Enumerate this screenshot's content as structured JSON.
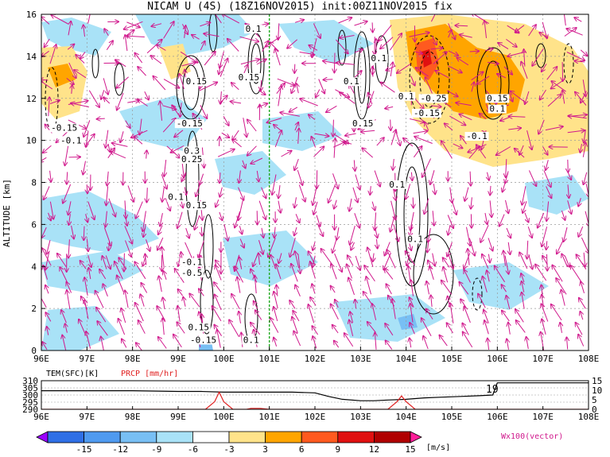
{
  "chart_data": [
    {
      "type": "heatmap",
      "title": "NICAM U (4S) (18Z16NOV2015) init:00Z11NOV2015 fix",
      "xlabel": "",
      "ylabel": "ALTITUDE [km]",
      "x_ticks": [
        "96E",
        "97E",
        "98E",
        "99E",
        "100E",
        "101E",
        "102E",
        "103E",
        "104E",
        "105E",
        "106E",
        "107E",
        "108E"
      ],
      "y_ticks": [
        "0",
        "2",
        "4",
        "6",
        "8",
        "10",
        "12",
        "14",
        "16"
      ],
      "xlim": [
        96,
        108
      ],
      "ylim": [
        0,
        16
      ],
      "grid": true,
      "colorbar": {
        "levels": [
          "-15",
          "-12",
          "-9",
          "-6",
          "-3",
          "3",
          "6",
          "9",
          "12",
          "15"
        ],
        "colors": [
          "#9a00ff",
          "#2f6fe6",
          "#4f9af0",
          "#78bff4",
          "#a9e2f7",
          "#ffffff",
          "#ffe38a",
          "#ffa500",
          "#ff5a1f",
          "#e01010",
          "#b00000",
          "#ff1f9a"
        ],
        "unit": "[m/s]"
      },
      "vector_label": "Wx100(vector)",
      "vertical_marker_x": 101.0,
      "contour_labels": [
        {
          "x": 100.65,
          "y": 15.2,
          "text": "0.1"
        },
        {
          "x": 100.55,
          "y": 12.9,
          "text": "0.15"
        },
        {
          "x": 99.4,
          "y": 12.7,
          "text": "0.15"
        },
        {
          "x": 99.25,
          "y": 10.7,
          "text": "-0.15"
        },
        {
          "x": 99.3,
          "y": 9.4,
          "text": "0.3"
        },
        {
          "x": 99.3,
          "y": 9.0,
          "text": "0.25"
        },
        {
          "x": 98.95,
          "y": 7.2,
          "text": "0.1"
        },
        {
          "x": 99.4,
          "y": 6.8,
          "text": "0.15"
        },
        {
          "x": 99.3,
          "y": 4.1,
          "text": "-0.1"
        },
        {
          "x": 99.3,
          "y": 3.6,
          "text": "-0.5"
        },
        {
          "x": 99.45,
          "y": 1.0,
          "text": "0.15"
        },
        {
          "x": 99.55,
          "y": 0.4,
          "text": "-0.15"
        },
        {
          "x": 100.6,
          "y": 0.4,
          "text": "0.1"
        },
        {
          "x": 96.5,
          "y": 10.5,
          "text": "-0.15"
        },
        {
          "x": 96.65,
          "y": 9.9,
          "text": "-0.1"
        },
        {
          "x": 103.4,
          "y": 13.8,
          "text": "0.1"
        },
        {
          "x": 102.8,
          "y": 12.7,
          "text": "0.1"
        },
        {
          "x": 103.05,
          "y": 10.7,
          "text": "0.15"
        },
        {
          "x": 104.0,
          "y": 12.0,
          "text": "0.1"
        },
        {
          "x": 104.6,
          "y": 11.9,
          "text": "-0.25"
        },
        {
          "x": 104.45,
          "y": 11.2,
          "text": "-0.15"
        },
        {
          "x": 105.55,
          "y": 10.1,
          "text": "-0.1"
        },
        {
          "x": 106.0,
          "y": 11.9,
          "text": "0.15"
        },
        {
          "x": 106.0,
          "y": 11.4,
          "text": "0.1"
        },
        {
          "x": 103.8,
          "y": 7.8,
          "text": "0.1"
        },
        {
          "x": 104.2,
          "y": 5.2,
          "text": "0.1"
        }
      ]
    },
    {
      "type": "line",
      "title": "",
      "series": [
        {
          "name": "TEM(SFC)[K]",
          "color": "#000000",
          "x": [
            96,
            97,
            98,
            99,
            99.5,
            100,
            100.5,
            101,
            101.5,
            102,
            102.3,
            102.6,
            103,
            103.3,
            103.6,
            104,
            104.4,
            104.8,
            105.2,
            105.6,
            105.9,
            106,
            107,
            108
          ],
          "values": [
            303,
            303,
            303,
            302.5,
            302.5,
            302,
            302,
            302,
            302,
            301.5,
            299,
            297,
            296,
            296,
            296.5,
            297,
            298,
            298.5,
            299,
            299.5,
            300,
            308.5,
            308.5,
            308.5
          ]
        },
        {
          "name": "PRCP [mm/hr]",
          "color": "#e02020",
          "x": [
            96,
            97,
            98,
            99,
            99.6,
            99.8,
            99.9,
            100,
            100.2,
            100.5,
            100.6,
            100.8,
            101,
            102,
            103,
            103.6,
            103.8,
            103.9,
            104.0,
            104.2,
            104.5,
            105,
            106,
            107,
            108
          ],
          "values": [
            0,
            0,
            0,
            0,
            0,
            4,
            9,
            4,
            0,
            0,
            0.5,
            0.5,
            0,
            0,
            0,
            0,
            4,
            7,
            4,
            0,
            0,
            0,
            0,
            0,
            0
          ]
        }
      ],
      "xlim": [
        96,
        108
      ],
      "left_axis_ticks": [
        "290",
        "295",
        "300",
        "305",
        "310"
      ],
      "right_axis_ticks": [
        "0",
        "5",
        "10",
        "15"
      ],
      "annotation": "19"
    }
  ]
}
